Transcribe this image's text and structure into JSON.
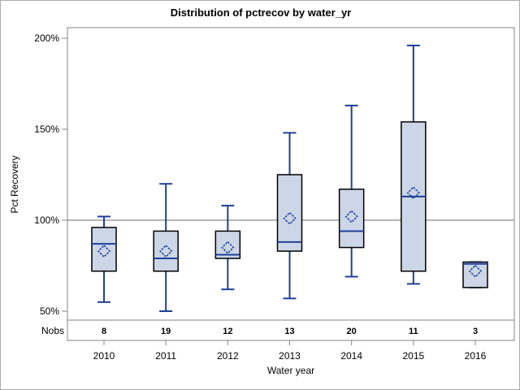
{
  "colors": {
    "box_fill": "#ccd6e6",
    "box_border": "#000000",
    "line_accent": "#1f4099",
    "axis_gray": "#848484",
    "reference_gray": "#ababab",
    "text": "#000000"
  },
  "chart_data": {
    "type": "boxplot",
    "title": "Distribution of pctrecov by water_yr",
    "xlabel": "Water year",
    "ylabel": "Pct Recovery",
    "nobs_label": "Nobs",
    "ylim": [
      45,
      206
    ],
    "reference_line": 100,
    "legend_position": "none",
    "grid": "off",
    "y_ticks": [
      {
        "value": 200,
        "label": "200%"
      },
      {
        "value": 150,
        "label": "150%"
      },
      {
        "value": 100,
        "label": "100%"
      },
      {
        "value": 50,
        "label": "50%"
      }
    ],
    "categories": [
      "2010",
      "2011",
      "2012",
      "2013",
      "2014",
      "2015",
      "2016"
    ],
    "nobs": [
      8,
      19,
      12,
      13,
      20,
      11,
      3
    ],
    "series": [
      {
        "category": "2010",
        "n": 8,
        "min": 55,
        "q1": 72,
        "median": 87,
        "mean": 83,
        "q3": 96,
        "max": 102
      },
      {
        "category": "2011",
        "n": 19,
        "min": 50,
        "q1": 72,
        "median": 79,
        "mean": 83,
        "q3": 94,
        "max": 120
      },
      {
        "category": "2012",
        "n": 12,
        "min": 62,
        "q1": 79,
        "median": 81,
        "mean": 85,
        "q3": 94,
        "max": 108
      },
      {
        "category": "2013",
        "n": 13,
        "min": 57,
        "q1": 83,
        "median": 88,
        "mean": 101,
        "q3": 125,
        "max": 148
      },
      {
        "category": "2014",
        "n": 20,
        "min": 69,
        "q1": 85,
        "median": 94,
        "mean": 102,
        "q3": 117,
        "max": 163
      },
      {
        "category": "2015",
        "n": 11,
        "min": 65,
        "q1": 72,
        "median": 113,
        "mean": 115,
        "q3": 154,
        "max": 196
      },
      {
        "category": "2016",
        "n": 3,
        "min": 63,
        "q1": 63,
        "median": 76,
        "mean": 72,
        "q3": 77,
        "max": 77
      }
    ]
  }
}
